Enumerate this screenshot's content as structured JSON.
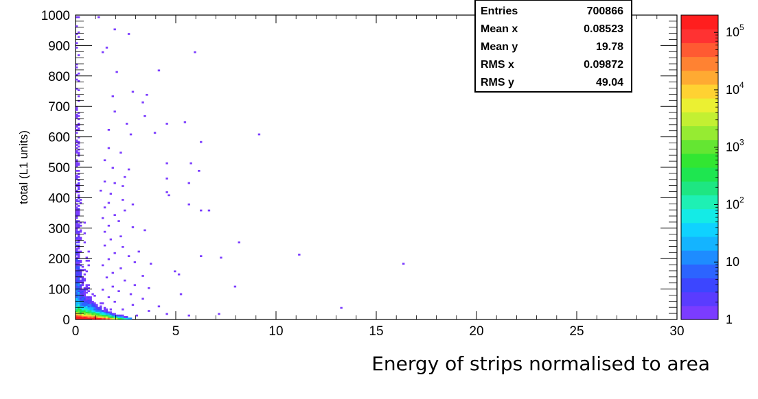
{
  "chart_data": {
    "type": "heatmap",
    "title": "",
    "xlabel": "Energy of strips normalised to area",
    "ylabel": "total (L1 units)",
    "xlim": [
      0,
      30
    ],
    "ylim": [
      0,
      1000
    ],
    "x_ticks": [
      "0",
      "5",
      "10",
      "15",
      "20",
      "25",
      "30"
    ],
    "y_ticks": [
      "0",
      "100",
      "200",
      "300",
      "400",
      "500",
      "600",
      "700",
      "800",
      "900",
      "1000"
    ],
    "z_scale": "log",
    "zlim": [
      1,
      200000
    ],
    "colorbar_ticks": [
      {
        "base": "1",
        "exp": ""
      },
      {
        "base": "10",
        "exp": ""
      },
      {
        "base": "10",
        "exp": "2"
      },
      {
        "base": "10",
        "exp": "3"
      },
      {
        "base": "10",
        "exp": "4"
      },
      {
        "base": "10",
        "exp": "5"
      }
    ],
    "colorbar_colors": [
      "#7b3cff",
      "#5a3cff",
      "#3c46ff",
      "#2c64ff",
      "#1e8cff",
      "#14b4ff",
      "#0fd2ff",
      "#14ebe6",
      "#1ef0b4",
      "#1ee682",
      "#1ee650",
      "#32e632",
      "#64e632",
      "#96eb32",
      "#c3f032",
      "#ebf032",
      "#ffd232",
      "#ffaa32",
      "#ff8232",
      "#ff5a32",
      "#ff3232",
      "#ff1e1e"
    ],
    "stats": {
      "entries_label": "Entries",
      "entries": "700866",
      "mean_x_label": "Mean x",
      "mean_x": "0.08523",
      "mean_y_label": "Mean y",
      "mean_y": "19.78",
      "rms_x_label": "RMS x",
      "rms_x": "0.09872",
      "rms_y_label": "RMS y",
      "rms_y": "49.04"
    },
    "sparse_points": [
      [
        1.1,
        990
      ],
      [
        1.9,
        950
      ],
      [
        2.6,
        935
      ],
      [
        1.5,
        890
      ],
      [
        1.3,
        875
      ],
      [
        5.9,
        875
      ],
      [
        4.1,
        815
      ],
      [
        2.0,
        810
      ],
      [
        2.8,
        745
      ],
      [
        3.5,
        735
      ],
      [
        1.8,
        730
      ],
      [
        3.3,
        710
      ],
      [
        1.9,
        680
      ],
      [
        3.4,
        665
      ],
      [
        2.5,
        640
      ],
      [
        4.5,
        640
      ],
      [
        5.4,
        645
      ],
      [
        1.6,
        620
      ],
      [
        2.7,
        605
      ],
      [
        3.9,
        610
      ],
      [
        9.1,
        605
      ],
      [
        6.2,
        580
      ],
      [
        1.6,
        560
      ],
      [
        2.2,
        545
      ],
      [
        1.4,
        520
      ],
      [
        4.5,
        510
      ],
      [
        5.7,
        510
      ],
      [
        1.8,
        495
      ],
      [
        2.6,
        490
      ],
      [
        6.1,
        485
      ],
      [
        2.4,
        465
      ],
      [
        4.5,
        460
      ],
      [
        1.4,
        450
      ],
      [
        1.9,
        445
      ],
      [
        2.3,
        435
      ],
      [
        5.6,
        445
      ],
      [
        1.2,
        420
      ],
      [
        4.5,
        415
      ],
      [
        1.7,
        410
      ],
      [
        4.6,
        405
      ],
      [
        2.3,
        390
      ],
      [
        1.6,
        380
      ],
      [
        2.8,
        375
      ],
      [
        5.6,
        375
      ],
      [
        1.4,
        365
      ],
      [
        2.4,
        355
      ],
      [
        1.9,
        340
      ],
      [
        6.2,
        355
      ],
      [
        6.6,
        355
      ],
      [
        1.3,
        330
      ],
      [
        2.1,
        320
      ],
      [
        1.6,
        305
      ],
      [
        2.8,
        300
      ],
      [
        3.4,
        290
      ],
      [
        1.4,
        285
      ],
      [
        2.2,
        270
      ],
      [
        1.7,
        260
      ],
      [
        8.1,
        250
      ],
      [
        1.4,
        240
      ],
      [
        2.3,
        235
      ],
      [
        3.1,
        220
      ],
      [
        1.9,
        215
      ],
      [
        2.6,
        205
      ],
      [
        6.2,
        205
      ],
      [
        7.2,
        200
      ],
      [
        11.1,
        210
      ],
      [
        16.3,
        180
      ],
      [
        1.6,
        195
      ],
      [
        2.9,
        185
      ],
      [
        3.7,
        180
      ],
      [
        1.3,
        175
      ],
      [
        2.2,
        165
      ],
      [
        1.8,
        150
      ],
      [
        5.1,
        145
      ],
      [
        4.9,
        155
      ],
      [
        3.3,
        140
      ],
      [
        1.5,
        135
      ],
      [
        2.4,
        125
      ],
      [
        2.9,
        110
      ],
      [
        1.8,
        105
      ],
      [
        3.6,
        100
      ],
      [
        7.9,
        105
      ],
      [
        1.3,
        95
      ],
      [
        2.1,
        90
      ],
      [
        2.7,
        80
      ],
      [
        5.2,
        80
      ],
      [
        1.6,
        70
      ],
      [
        3.3,
        65
      ],
      [
        1.9,
        55
      ],
      [
        2.8,
        45
      ],
      [
        4.1,
        40
      ],
      [
        13.2,
        35
      ],
      [
        2.3,
        30
      ],
      [
        3.6,
        25
      ],
      [
        1.7,
        20
      ],
      [
        4.5,
        15
      ],
      [
        7.1,
        15
      ],
      [
        3.0,
        10
      ],
      [
        5.6,
        10
      ],
      [
        2.4,
        5
      ]
    ]
  }
}
